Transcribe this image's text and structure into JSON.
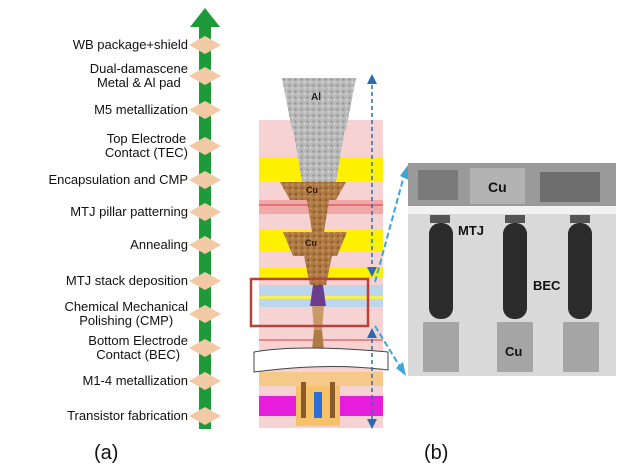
{
  "flow": {
    "steps": [
      {
        "lines": [
          "WB package+shield"
        ]
      },
      {
        "lines": [
          "Dual-damascene",
          "Metal & Al pad"
        ]
      },
      {
        "lines": [
          "M5 metallization"
        ]
      },
      {
        "lines": [
          "Top Electrode",
          "Contact (TEC)"
        ]
      },
      {
        "lines": [
          "Encapsulation and CMP"
        ]
      },
      {
        "lines": [
          "MTJ pillar patterning"
        ]
      },
      {
        "lines": [
          "Annealing"
        ]
      },
      {
        "lines": [
          "MTJ stack deposition"
        ]
      },
      {
        "lines": [
          "Chemical Mechanical",
          "Polishing (CMP)"
        ]
      },
      {
        "lines": [
          "Bottom Electrode",
          "Contact (BEC)"
        ]
      },
      {
        "lines": [
          "M1-4 metallization"
        ]
      },
      {
        "lines": [
          "Transistor fabrication"
        ]
      }
    ]
  },
  "cross_section": {
    "labels": {
      "al": "Al",
      "cu_top": "Cu",
      "cu_mid": "Cu"
    }
  },
  "tem": {
    "labels": {
      "cu_top": "Cu",
      "mtj": "MTJ",
      "bec": "BEC",
      "cu_bottom": "Cu"
    }
  },
  "panel_labels": {
    "a": "(a)",
    "b": "(b)"
  },
  "colors": {
    "arrow": "#1f9a3a",
    "diamond": "#f3c9a5",
    "highlight_box": "#b5433a",
    "dashed_arrow": "#2b6cb0",
    "zoom_arrow": "#3aa6dc"
  }
}
